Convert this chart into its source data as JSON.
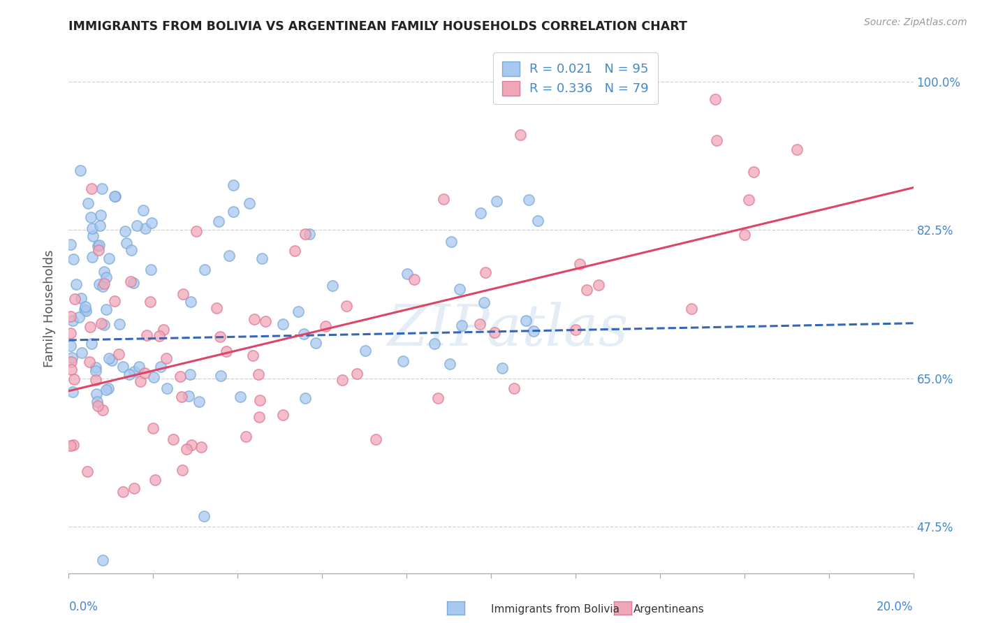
{
  "title": "IMMIGRANTS FROM BOLIVIA VS ARGENTINEAN FAMILY HOUSEHOLDS CORRELATION CHART",
  "source_text": "Source: ZipAtlas.com",
  "ylabel_label": "Family Households",
  "legend_entry_1": "R = 0.021   N = 95",
  "legend_entry_2": "R = 0.336   N = 79",
  "legend_bottom_1": "Immigrants from Bolivia",
  "legend_bottom_2": "Argentineans",
  "watermark": "ZIPatlas",
  "blue_color": "#a8c8f0",
  "pink_color": "#f0a8b8",
  "blue_edge_color": "#7aaad8",
  "pink_edge_color": "#e07898",
  "blue_line_color": "#3366bb",
  "pink_line_color": "#dd4466",
  "background_color": "#ffffff",
  "grid_color": "#cccccc",
  "title_color": "#222222",
  "axis_label_color": "#4488cc",
  "source_color": "#999999",
  "ylabel_color": "#555555",
  "xmin": 0.0,
  "xmax": 0.2,
  "ymin": 0.42,
  "ymax": 1.045,
  "yticks": [
    0.475,
    0.65,
    0.825,
    1.0
  ],
  "ytick_labels": [
    "47.5%",
    "65.0%",
    "82.5%",
    "100.0%"
  ],
  "blue_trend_x0": 0.0,
  "blue_trend_x1": 0.2,
  "blue_trend_y0": 0.695,
  "blue_trend_y1": 0.715,
  "pink_trend_x0": 0.0,
  "pink_trend_x1": 0.2,
  "pink_trend_y0": 0.635,
  "pink_trend_y1": 0.875
}
